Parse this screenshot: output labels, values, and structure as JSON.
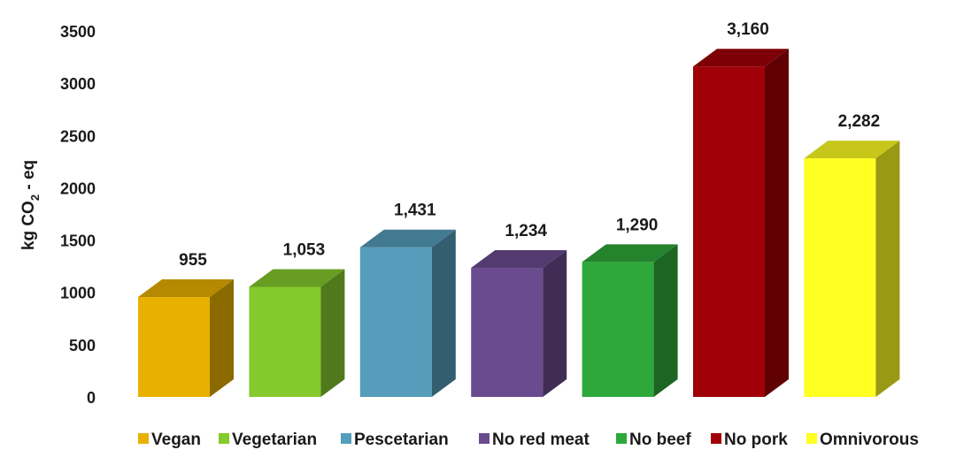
{
  "chart_data": {
    "type": "bar",
    "style": "3d",
    "title": "",
    "xlabel": "",
    "ylabel_main": "kg CO",
    "ylabel_sub": "2",
    "ylabel_tail": " - eq",
    "ylim": [
      0,
      3500
    ],
    "yticks": [
      "0",
      "500",
      "1000",
      "1500",
      "2000",
      "2500",
      "3000",
      "3500"
    ],
    "grid": false,
    "legend_position": "bottom",
    "categories": [
      "Vegan",
      "Vegetarian",
      "Pescetarian",
      "No red meat",
      "No beef",
      "No pork",
      "Omnivorous"
    ],
    "values": [
      955,
      1053,
      1431,
      1234,
      1290,
      3160,
      2282
    ],
    "value_labels": [
      "955",
      "1,053",
      "1,431",
      "1,234",
      "1,290",
      "3,160",
      "2,282"
    ],
    "colors": [
      "#E8B100",
      "#84C92D",
      "#559DBA",
      "#6A4B8F",
      "#2EA83A",
      "#A00008",
      "#FFFF22"
    ]
  }
}
